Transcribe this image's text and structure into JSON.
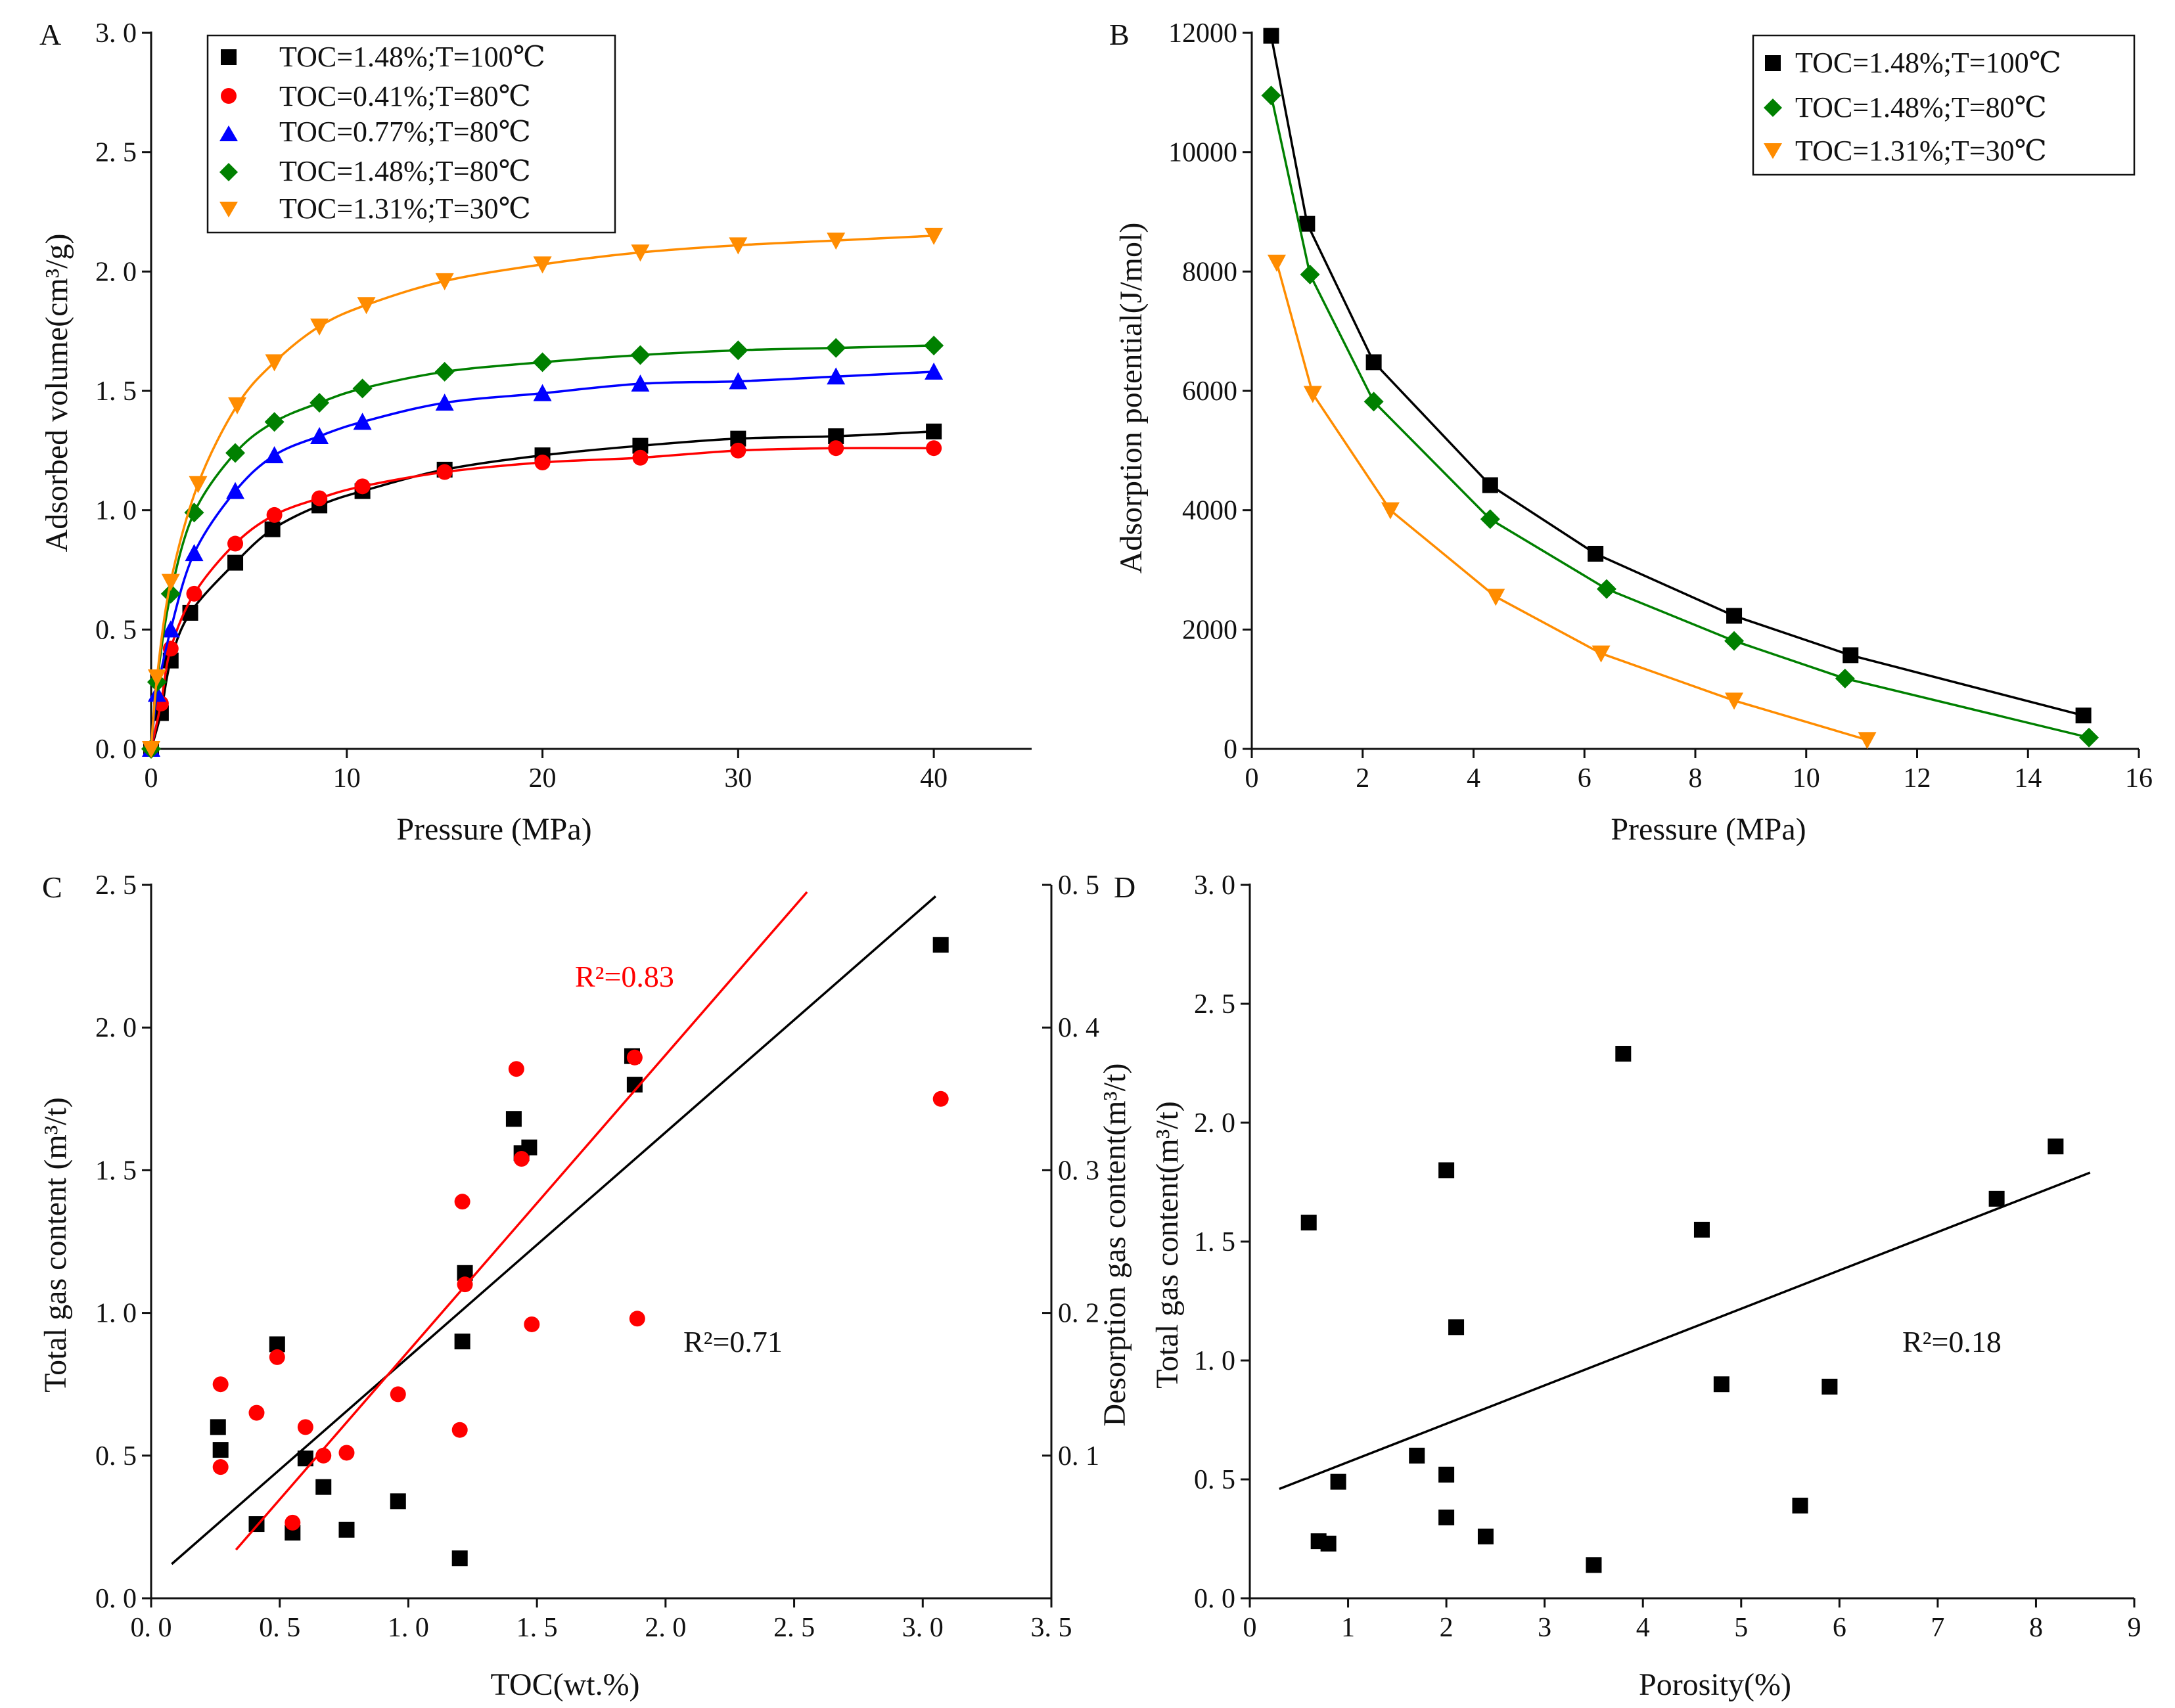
{
  "chart_data": [
    {
      "panel": "A",
      "type": "line",
      "xlabel": "Pressure (MPa)",
      "ylabel": "Adsorbed volume(cm³/g)",
      "xlim": [
        0,
        45
      ],
      "ylim": [
        0,
        3.0
      ],
      "xticks": [
        0,
        10,
        20,
        30,
        40
      ],
      "yticks": [
        0.0,
        0.5,
        1.0,
        1.5,
        2.0,
        2.5,
        3.0
      ],
      "xtick_labels": [
        "0",
        "10",
        "20",
        "30",
        "40"
      ],
      "ytick_labels": [
        "0. 0",
        "0. 5",
        "1. 0",
        "1. 5",
        "2. 0",
        "2. 5",
        "3. 0"
      ],
      "legend_position": "top-left",
      "series": [
        {
          "name": "TOC=1.48%;T=100℃",
          "marker": "square",
          "color": "#000000",
          "x": [
            0,
            0.5,
            1,
            2,
            4.3,
            6.2,
            8.6,
            10.8,
            15,
            20,
            25,
            30,
            35,
            40
          ],
          "y": [
            0.0,
            0.15,
            0.37,
            0.57,
            0.78,
            0.92,
            1.02,
            1.08,
            1.17,
            1.23,
            1.27,
            1.3,
            1.31,
            1.33
          ]
        },
        {
          "name": "TOC=0.41%;T=80℃",
          "marker": "circle",
          "color": "#ff0000",
          "x": [
            0,
            0.5,
            1,
            2.2,
            4.3,
            6.3,
            8.6,
            10.8,
            15,
            20,
            25,
            30,
            35,
            40
          ],
          "y": [
            0.0,
            0.19,
            0.42,
            0.65,
            0.86,
            0.98,
            1.05,
            1.1,
            1.16,
            1.2,
            1.22,
            1.25,
            1.26,
            1.26
          ]
        },
        {
          "name": "TOC=0.77%;T=80℃",
          "marker": "triangle-up",
          "color": "#0000ff",
          "x": [
            0,
            0.3,
            1,
            2.2,
            4.3,
            6.3,
            8.6,
            10.8,
            15,
            20,
            25,
            30,
            35,
            40
          ],
          "y": [
            0.0,
            0.23,
            0.5,
            0.82,
            1.08,
            1.23,
            1.31,
            1.37,
            1.45,
            1.49,
            1.53,
            1.54,
            1.56,
            1.58
          ]
        },
        {
          "name": "TOC=1.48%;T=80℃",
          "marker": "diamond",
          "color": "#008000",
          "x": [
            0,
            0.3,
            1,
            2.2,
            4.3,
            6.3,
            8.6,
            10.8,
            15,
            20,
            25,
            30,
            35,
            40
          ],
          "y": [
            0.0,
            0.28,
            0.65,
            0.99,
            1.24,
            1.37,
            1.45,
            1.51,
            1.58,
            1.62,
            1.65,
            1.67,
            1.68,
            1.69
          ]
        },
        {
          "name": "TOC=1.31%;T=30℃",
          "marker": "triangle-down",
          "color": "#ff8c00",
          "x": [
            0,
            0.3,
            1,
            2.4,
            4.4,
            6.3,
            8.6,
            11,
            15,
            20,
            25,
            30,
            35,
            40
          ],
          "y": [
            0.0,
            0.3,
            0.7,
            1.11,
            1.44,
            1.62,
            1.77,
            1.86,
            1.96,
            2.03,
            2.08,
            2.11,
            2.13,
            2.15
          ]
        }
      ]
    },
    {
      "panel": "B",
      "type": "line",
      "xlabel": "Pressure (MPa)",
      "ylabel": "Adsorption potential(J/mol)",
      "xlim": [
        0,
        16
      ],
      "ylim": [
        0,
        12000
      ],
      "xticks": [
        0,
        2,
        4,
        6,
        8,
        10,
        12,
        14,
        16
      ],
      "yticks": [
        0,
        2000,
        4000,
        6000,
        8000,
        10000,
        12000
      ],
      "xtick_labels": [
        "0",
        "2",
        "4",
        "6",
        "8",
        "10",
        "12",
        "14",
        "16"
      ],
      "ytick_labels": [
        "0",
        "2000",
        "4000",
        "6000",
        "8000",
        "10000",
        "12000"
      ],
      "legend_position": "top-right",
      "series": [
        {
          "name": "TOC=1.48%;T=100℃",
          "marker": "square",
          "color": "#000000",
          "x": [
            0.35,
            1.0,
            2.2,
            4.3,
            6.2,
            8.7,
            10.8,
            15.0
          ],
          "y": [
            11950,
            8800,
            6480,
            4420,
            3270,
            2230,
            1570,
            560
          ]
        },
        {
          "name": "TOC=1.48%;T=80℃",
          "marker": "diamond",
          "color": "#008000",
          "x": [
            0.35,
            1.05,
            2.2,
            4.3,
            6.4,
            8.7,
            10.7,
            15.1
          ],
          "y": [
            10950,
            7950,
            5820,
            3850,
            2680,
            1810,
            1180,
            190
          ]
        },
        {
          "name": "TOC=1.31%;T=30℃",
          "marker": "triangle-down",
          "color": "#ff8c00",
          "x": [
            0.45,
            1.1,
            2.5,
            4.4,
            6.3,
            8.7,
            11.1
          ],
          "y": [
            8150,
            5950,
            4000,
            2550,
            1600,
            810,
            150
          ]
        }
      ]
    },
    {
      "panel": "C",
      "type": "scatter",
      "xlabel": "TOC(wt.%)",
      "ylabel": "Total  gas  content (m³/t)",
      "ylabel_right": "Desorption  gas  content(m³/t)",
      "xlim": [
        0,
        3.5
      ],
      "ylim": [
        0,
        2.5
      ],
      "ylim_right": [
        0,
        0.5
      ],
      "xticks": [
        0,
        0.5,
        1.0,
        1.5,
        2.0,
        2.5,
        3.0,
        3.5
      ],
      "yticks": [
        0.0,
        0.5,
        1.0,
        1.5,
        2.0,
        2.5
      ],
      "yticks_right": [
        0.1,
        0.2,
        0.3,
        0.4,
        0.5
      ],
      "xtick_labels": [
        "0. 0",
        "0. 5",
        "1. 0",
        "1. 5",
        "2. 0",
        "2. 5",
        "3. 0",
        "3. 5"
      ],
      "ytick_labels": [
        "0. 0",
        "0. 5",
        "1. 0",
        "1. 5",
        "2. 0",
        "2. 5"
      ],
      "ytick_labels_right": [
        "0. 1",
        "0. 2",
        "0. 3",
        "0. 4",
        "0. 5"
      ],
      "series": [
        {
          "name": "Total gas content",
          "marker": "square",
          "color": "#000000",
          "axis": "left",
          "x": [
            0.26,
            0.27,
            0.41,
            0.49,
            0.55,
            0.6,
            0.67,
            0.76,
            0.96,
            1.2,
            1.21,
            1.22,
            1.41,
            1.44,
            1.47,
            1.87,
            1.88,
            3.07
          ],
          "y": [
            0.6,
            0.52,
            0.26,
            0.89,
            0.23,
            0.49,
            0.39,
            0.24,
            0.34,
            0.14,
            0.9,
            1.14,
            1.68,
            1.56,
            1.58,
            1.9,
            1.8,
            2.29
          ],
          "fit": {
            "x": [
              0.08,
              3.05
            ],
            "y": [
              0.12,
              2.46
            ]
          },
          "r2_label": "R²=0.71"
        },
        {
          "name": "Desorption gas content",
          "marker": "circle",
          "color": "#ff0000",
          "axis": "right",
          "x": [
            0.27,
            0.27,
            0.41,
            0.49,
            0.55,
            0.6,
            0.67,
            0.76,
            0.96,
            1.2,
            1.21,
            1.22,
            1.42,
            1.44,
            1.48,
            1.88,
            1.89,
            3.07
          ],
          "y": [
            0.15,
            0.092,
            0.13,
            0.169,
            0.053,
            0.12,
            0.1,
            0.102,
            0.143,
            0.118,
            0.278,
            0.22,
            0.371,
            0.308,
            0.192,
            0.379,
            0.196,
            0.35
          ],
          "fit": {
            "x": [
              0.33,
              2.55
            ],
            "y": [
              0.034,
              0.495
            ]
          },
          "r2_label": "R²=0.83"
        }
      ]
    },
    {
      "panel": "D",
      "type": "scatter",
      "xlabel": "Porosity(%)",
      "ylabel": "Total  gas  content(m³/t)",
      "xlim": [
        0,
        9
      ],
      "ylim": [
        0,
        3.0
      ],
      "xticks": [
        0,
        1,
        2,
        3,
        4,
        5,
        6,
        7,
        8,
        9
      ],
      "yticks": [
        0.0,
        0.5,
        1.0,
        1.5,
        2.0,
        2.5,
        3.0
      ],
      "xtick_labels": [
        "0",
        "1",
        "2",
        "3",
        "4",
        "5",
        "6",
        "7",
        "8",
        "9"
      ],
      "ytick_labels": [
        "0. 0",
        "0. 5",
        "1. 0",
        "1. 5",
        "2. 0",
        "2. 5",
        "3. 0"
      ],
      "series": [
        {
          "name": "Total gas content",
          "marker": "square",
          "color": "#000000",
          "x": [
            0.6,
            0.7,
            0.8,
            0.9,
            1.7,
            2.0,
            2.0,
            2.0,
            2.1,
            2.4,
            3.5,
            3.8,
            4.6,
            4.8,
            5.6,
            5.9,
            7.6,
            8.2
          ],
          "y": [
            1.58,
            0.24,
            0.23,
            0.49,
            0.6,
            1.8,
            0.52,
            0.34,
            1.14,
            0.26,
            0.14,
            2.29,
            1.55,
            0.9,
            0.39,
            0.89,
            1.68,
            1.9
          ],
          "fit": {
            "x": [
              0.3,
              8.55
            ],
            "y": [
              0.46,
              1.79
            ]
          },
          "r2_label": "R²=0.18"
        }
      ]
    }
  ]
}
